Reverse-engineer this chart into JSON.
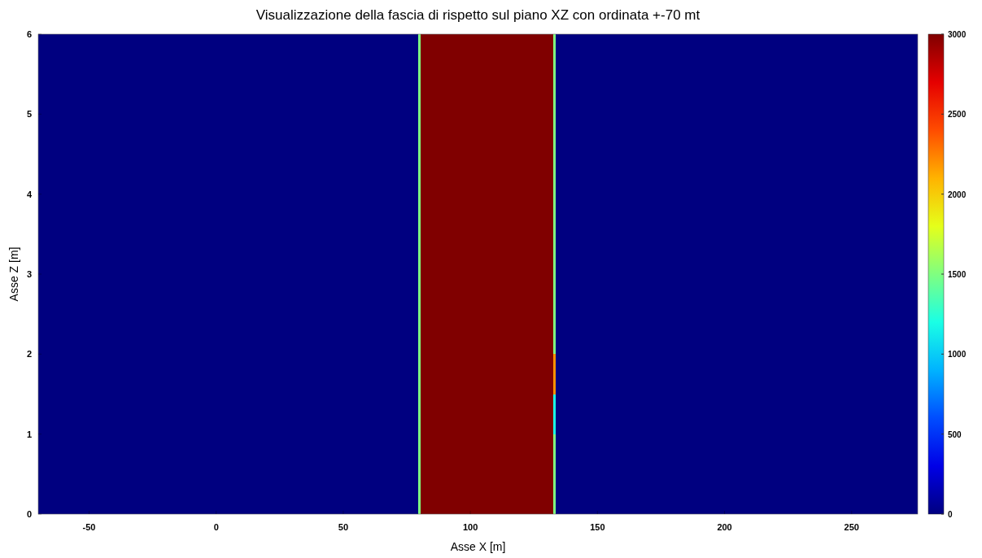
{
  "chart_data": {
    "type": "heatmap",
    "title": "Visualizzazione della fascia di rispetto sul piano XZ con ordinata +-70 mt",
    "xlabel": "Asse X [m]",
    "ylabel": "Asse Z [m]",
    "x": [
      -70,
      -50,
      -30,
      -10,
      10,
      30,
      50,
      70,
      79,
      80,
      81,
      100,
      120,
      132,
      133,
      134,
      150,
      170,
      190,
      210,
      230,
      250,
      270,
      276
    ],
    "y": [
      5.75,
      5.25,
      4.75,
      4.25,
      3.75,
      3.25,
      2.75,
      2.25,
      1.75,
      1.25,
      0.75,
      0.25
    ],
    "cells": [
      [
        0,
        0,
        0,
        0,
        0,
        0,
        0,
        0,
        0,
        1500,
        3000,
        3000,
        3000,
        3000,
        1500,
        0,
        0,
        0,
        0,
        0,
        0,
        0,
        0,
        0
      ],
      [
        0,
        0,
        0,
        0,
        0,
        0,
        0,
        0,
        0,
        1500,
        3000,
        3000,
        3000,
        3000,
        1500,
        0,
        0,
        0,
        0,
        0,
        0,
        0,
        0,
        0
      ],
      [
        0,
        0,
        0,
        0,
        0,
        0,
        0,
        0,
        0,
        1500,
        3000,
        3000,
        3000,
        3000,
        1500,
        0,
        0,
        0,
        0,
        0,
        0,
        0,
        0,
        0
      ],
      [
        0,
        0,
        0,
        0,
        0,
        0,
        0,
        0,
        0,
        1500,
        3000,
        3000,
        3000,
        3000,
        1500,
        0,
        0,
        0,
        0,
        0,
        0,
        0,
        0,
        0
      ],
      [
        0,
        0,
        0,
        0,
        0,
        0,
        0,
        0,
        0,
        1500,
        3000,
        3000,
        3000,
        3000,
        1500,
        0,
        0,
        0,
        0,
        0,
        0,
        0,
        0,
        0
      ],
      [
        0,
        0,
        0,
        0,
        0,
        0,
        0,
        0,
        0,
        1500,
        3000,
        3000,
        3000,
        3000,
        1500,
        0,
        0,
        0,
        0,
        0,
        0,
        0,
        0,
        0
      ],
      [
        0,
        0,
        0,
        0,
        0,
        0,
        0,
        0,
        0,
        1500,
        3000,
        3000,
        3000,
        3000,
        1500,
        0,
        0,
        0,
        0,
        0,
        0,
        0,
        0,
        0
      ],
      [
        0,
        0,
        0,
        0,
        0,
        0,
        0,
        0,
        0,
        1500,
        3000,
        3000,
        3000,
        3000,
        1500,
        0,
        0,
        0,
        0,
        0,
        0,
        0,
        0,
        0
      ],
      [
        0,
        0,
        0,
        0,
        0,
        0,
        0,
        0,
        0,
        1500,
        3000,
        3000,
        3000,
        3000,
        2200,
        0,
        0,
        0,
        0,
        0,
        0,
        0,
        0,
        0
      ],
      [
        0,
        0,
        0,
        0,
        0,
        0,
        0,
        0,
        0,
        1500,
        3000,
        3000,
        3000,
        3000,
        1200,
        0,
        0,
        0,
        0,
        0,
        0,
        0,
        0,
        0
      ],
      [
        0,
        0,
        0,
        0,
        0,
        0,
        0,
        0,
        0,
        1500,
        3000,
        3000,
        3000,
        3000,
        1500,
        0,
        0,
        0,
        0,
        0,
        0,
        0,
        0,
        0
      ],
      [
        0,
        0,
        0,
        0,
        0,
        0,
        0,
        0,
        0,
        1500,
        3000,
        3000,
        3000,
        3000,
        1500,
        0,
        0,
        0,
        0,
        0,
        0,
        0,
        0,
        0
      ]
    ],
    "xlim": [
      -70,
      276
    ],
    "xticks": [
      -50,
      0,
      50,
      100,
      150,
      200,
      250
    ],
    "ylim": [
      0,
      6
    ],
    "yticks": [
      0,
      1,
      2,
      3,
      4,
      5,
      6
    ],
    "clim": [
      0,
      3000
    ],
    "cticks": [
      0,
      500,
      1000,
      1500,
      2000,
      2500,
      3000
    ]
  }
}
